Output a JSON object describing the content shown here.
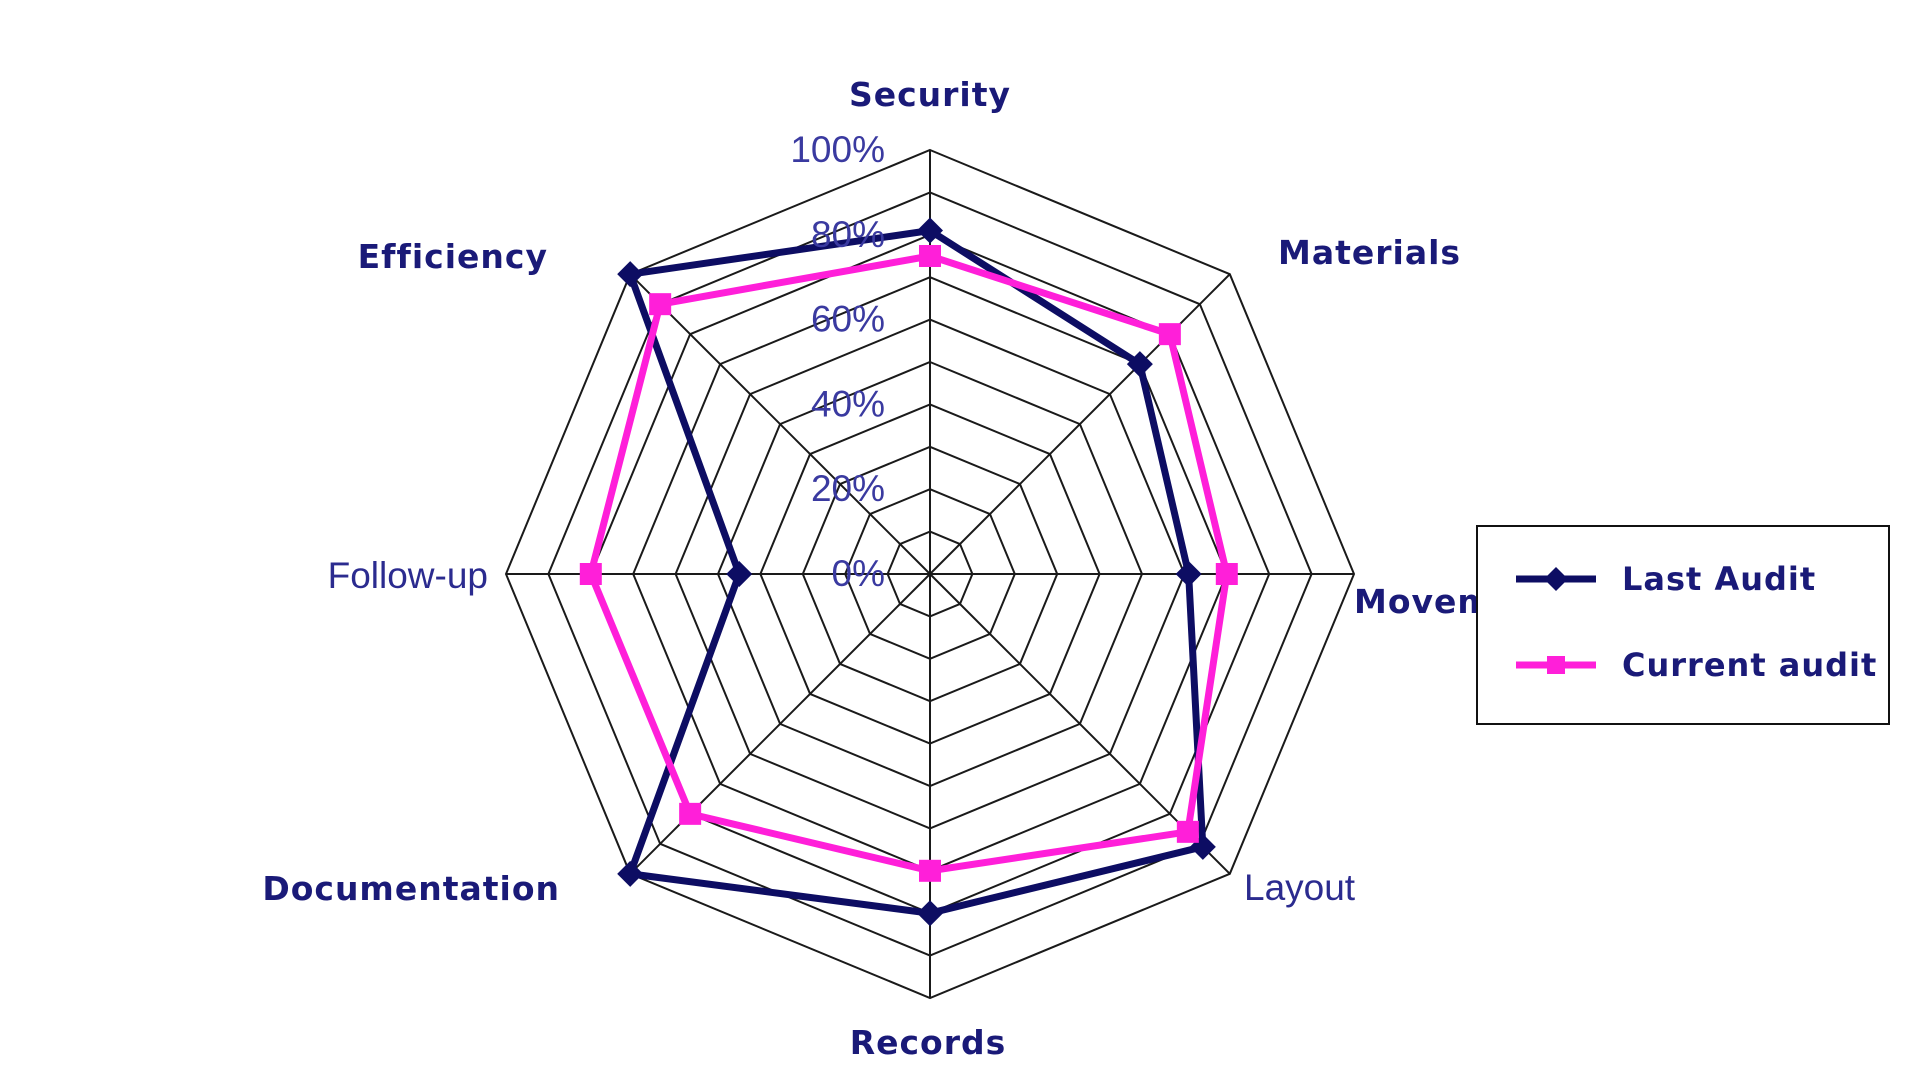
{
  "chart_data": {
    "type": "radar",
    "axes": [
      "Security",
      "Materials",
      "Movement",
      "Layout",
      "Records",
      "Documentation",
      "Follow-up",
      "Efficiency"
    ],
    "ticks": [
      "0%",
      "20%",
      "40%",
      "60%",
      "80%",
      "100%"
    ],
    "rmax": 100,
    "rings": 10,
    "series": [
      {
        "name": "Last Audit",
        "values": [
          81,
          70,
          61,
          91,
          80,
          100,
          45,
          100
        ],
        "color": "#0d0d63",
        "marker": "diamond"
      },
      {
        "name": "Current audit",
        "values": [
          75,
          80,
          70,
          86,
          70,
          80,
          80,
          90
        ],
        "color": "#ff1fd9",
        "marker": "square"
      }
    ],
    "legend_position": "right"
  }
}
